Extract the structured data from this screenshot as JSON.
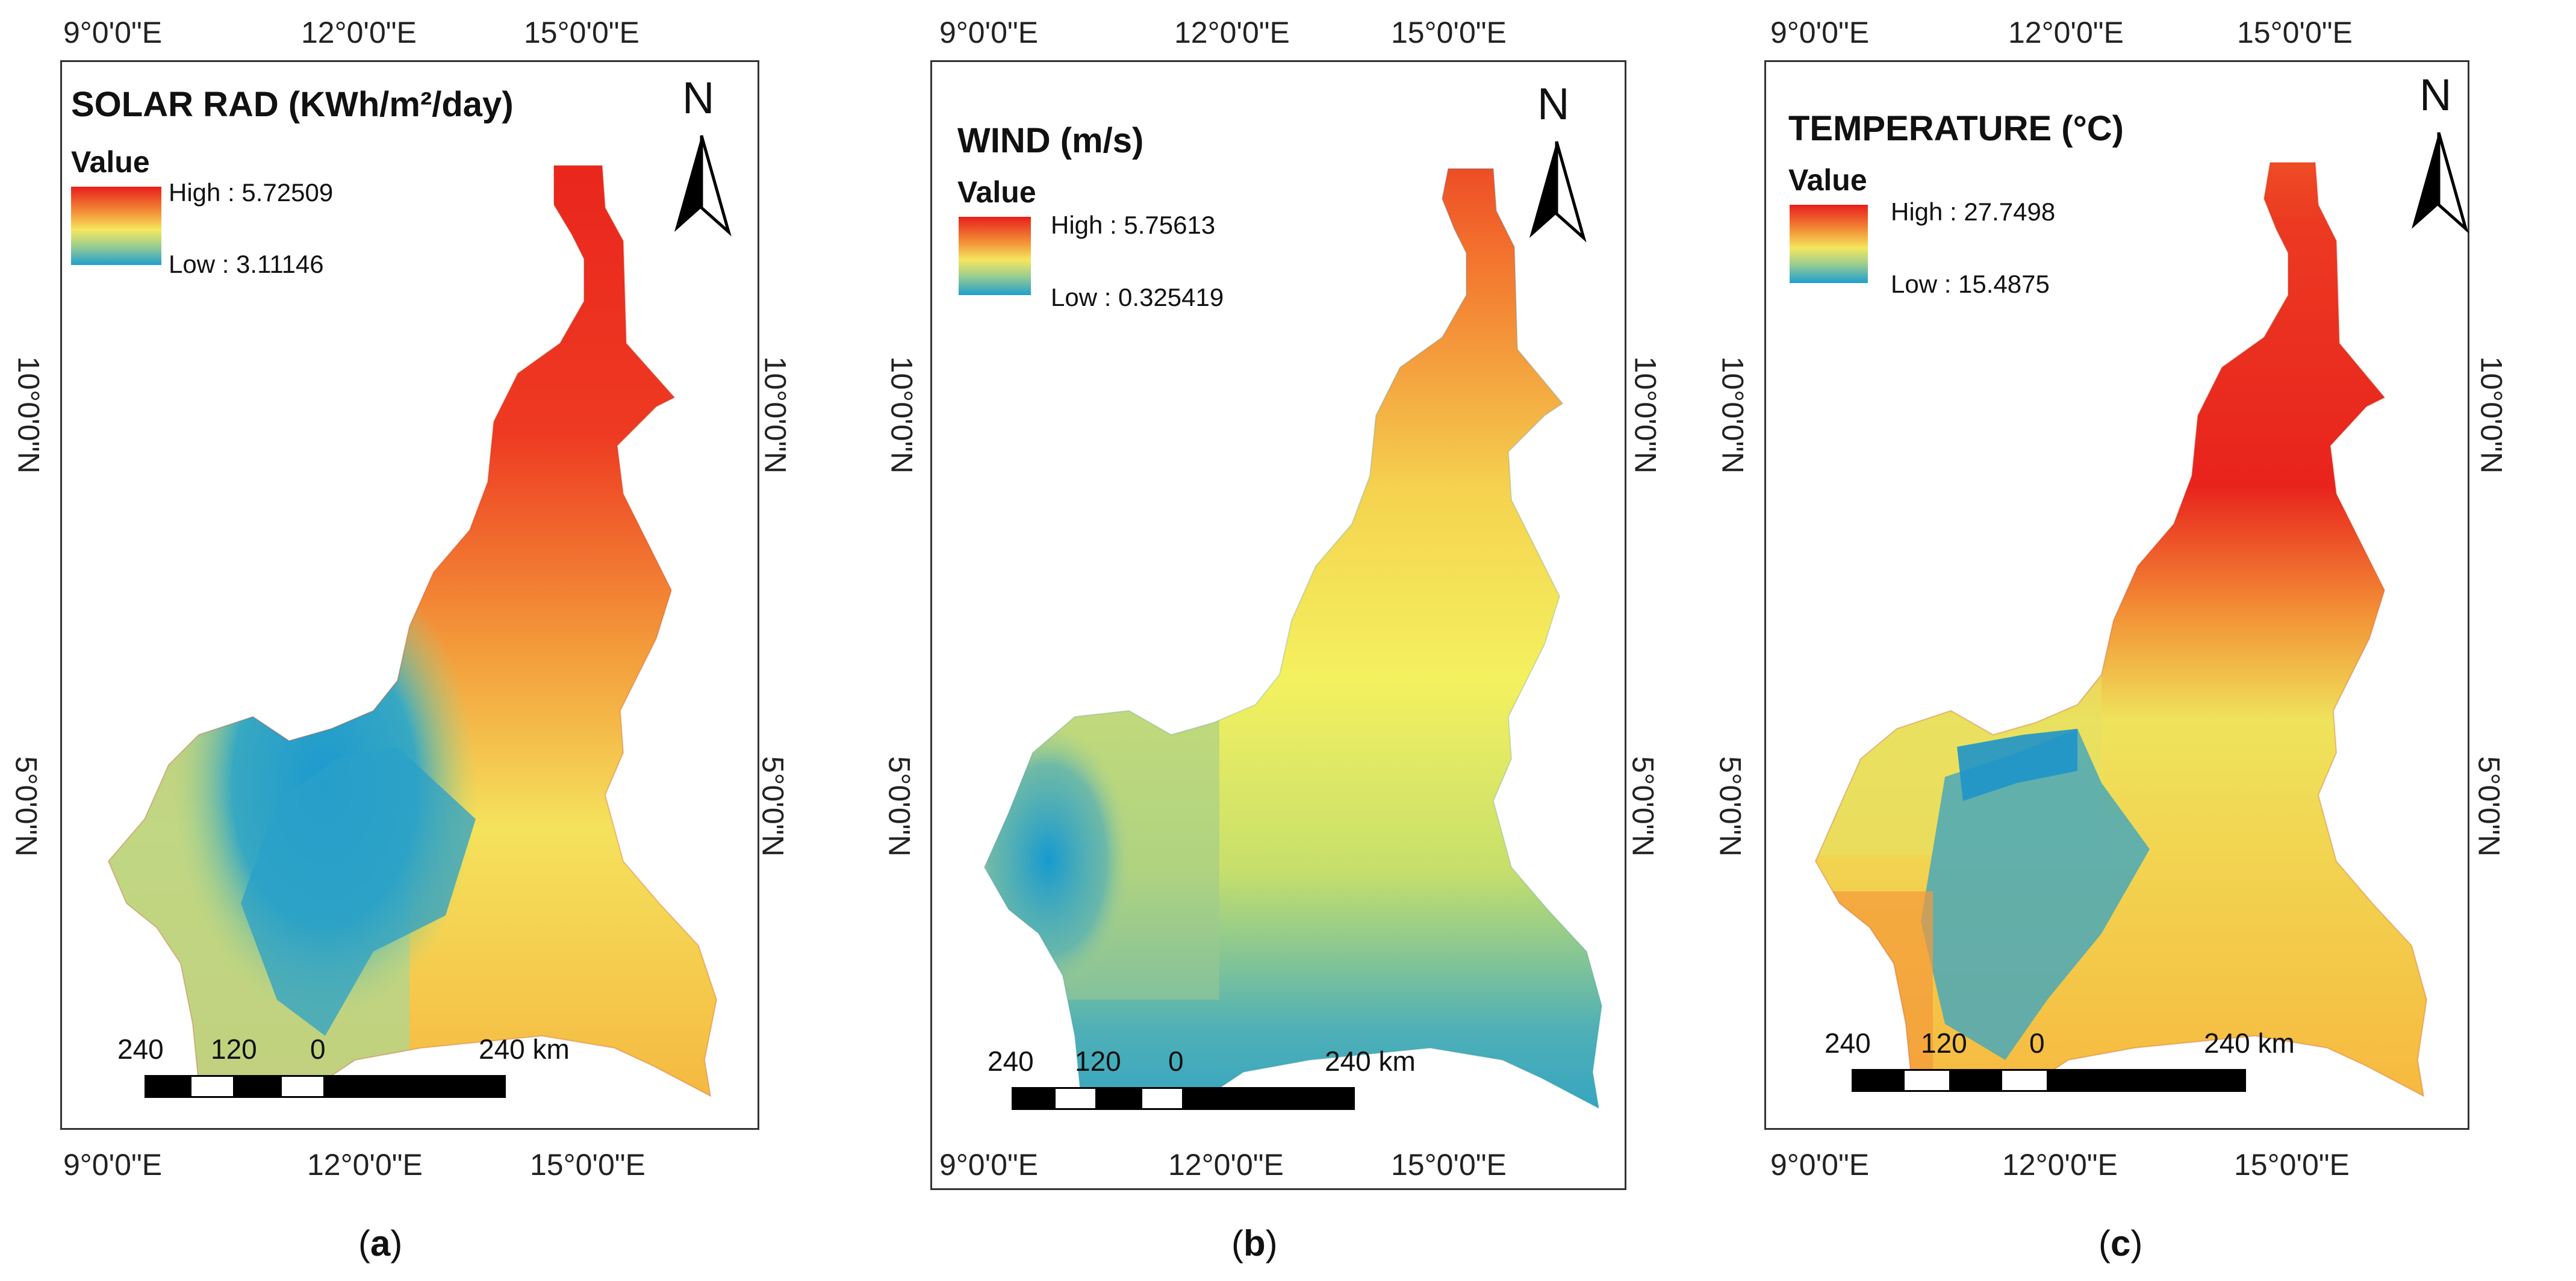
{
  "panels": [
    {
      "id": "a",
      "title": "SOLAR RAD (KWh/m²/day)",
      "legend": {
        "heading": "Value",
        "high": "High : 5.72509",
        "low": "Low : 3.11146"
      },
      "caption": {
        "open": "(",
        "letter": "a",
        "close": ")"
      }
    },
    {
      "id": "b",
      "title": "WIND (m/s)",
      "legend": {
        "heading": "Value",
        "high": "High : 5.75613",
        "low": "Low : 0.325419"
      },
      "caption": {
        "open": "(",
        "letter": "b",
        "close": ")"
      }
    },
    {
      "id": "c",
      "title": "TEMPERATURE (°C)",
      "legend": {
        "heading": "Value",
        "high": "High : 27.7498",
        "low": "Low : 15.4875"
      },
      "caption": {
        "open": "(",
        "letter": "c",
        "close": ")"
      }
    }
  ],
  "axes": {
    "lon_labels": [
      "9°0'0\"E",
      "12°0'0\"E",
      "15°0'0\"E"
    ],
    "lat_labels": [
      "10°0'0\"N",
      "5°0'0\"N"
    ]
  },
  "north_arrow": {
    "label": "N"
  },
  "scale_bar": {
    "labels": [
      "240",
      "120",
      "0",
      "240 km"
    ]
  },
  "colors": {
    "high": "#e8231d",
    "mid_high": "#f6a73a",
    "mid": "#f3f05a",
    "mid_low": "#a5cf86",
    "low": "#1c9bd0",
    "frame": "#333333"
  }
}
